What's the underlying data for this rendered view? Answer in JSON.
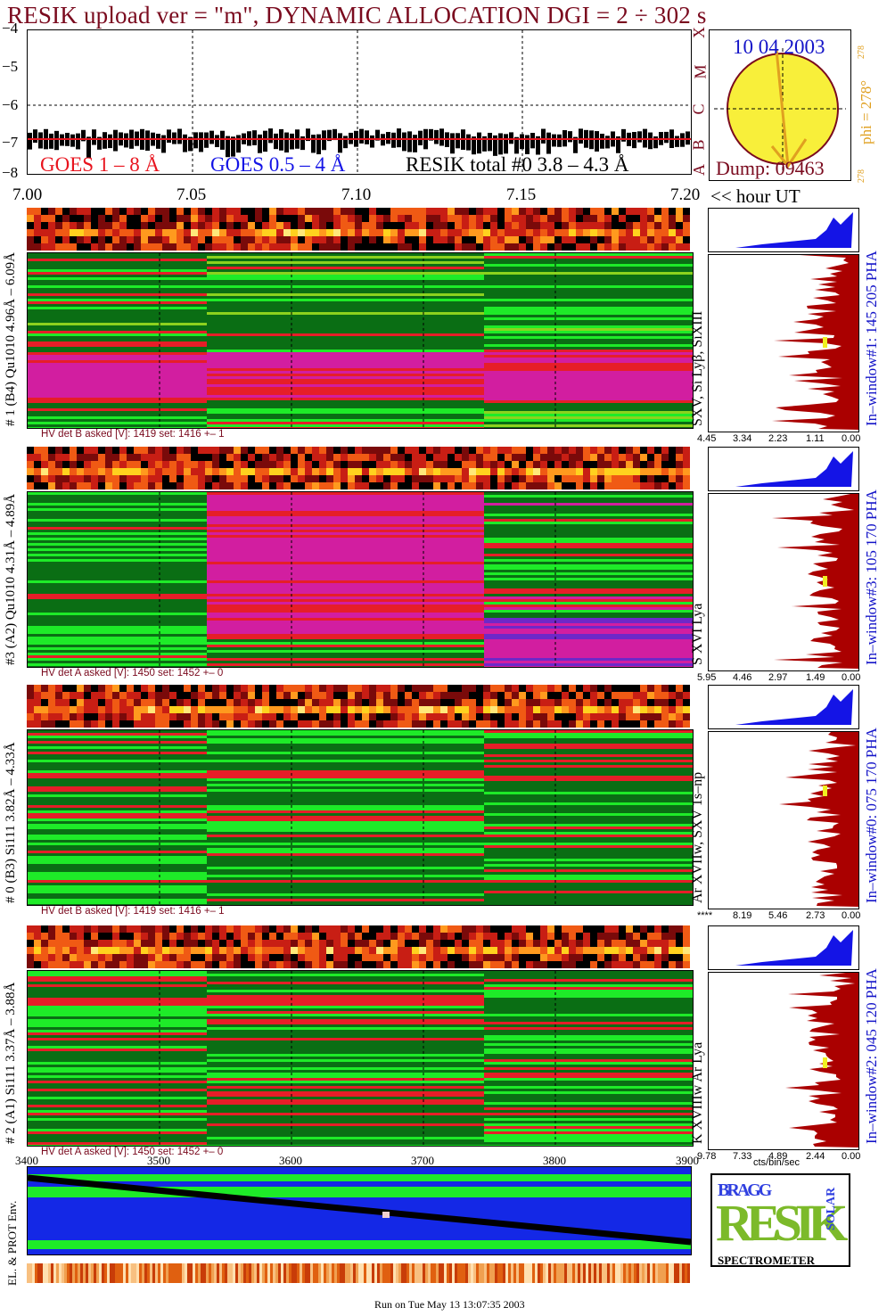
{
  "header": {
    "title": "RESIK upload ver = \"m\", DYNAMIC ALLOCATION  DGI =   2 ÷ 302 s"
  },
  "goes_panel": {
    "ytick_labels": [
      "−4",
      "−5",
      "−6",
      "−7",
      "−8"
    ],
    "legend_goes_long": "GOES 1 – 8 Å",
    "legend_goes_short": "GOES 0.5 – 4 Å",
    "legend_resik_total": "RESIK total #0  3.8 – 4.3 Å",
    "class_labels": [
      "X",
      "M",
      "C",
      "B",
      "A"
    ],
    "colors": {
      "long": "#e8141e",
      "short": "#1414e6",
      "resik": "#000000"
    }
  },
  "time_axis": {
    "tick_labels": [
      "7.00",
      "7.05",
      "7.10",
      "7.15",
      "7.20"
    ],
    "unit_label": "<< hour UT"
  },
  "sun_panel": {
    "date": "10 04 2003",
    "dump": "Dump: 09463",
    "phi_label": "phi = 278°",
    "phi_super": "278",
    "phi_small": "278",
    "sun_color": "#f8ef3a",
    "arrow_color": "#e0a020"
  },
  "detectors": [
    {
      "side_label": "# 1 (B4) Qu1010 4.96Å – 6.09Å",
      "lines_label": "SXV, Si Lyβ, SiXIII",
      "window_label": "In–window#1:  145 205 PHA",
      "hv_label": "HV det B asked [V]:  1419 set:  1416 +–    1",
      "hist_ticks": [
        "4.45",
        "3.34",
        "2.23",
        "1.11",
        "0.00"
      ]
    },
    {
      "side_label": "#3 (A2) Qu1010  4.31Å – 4.89Å",
      "lines_label": "S XVI Lya",
      "window_label": "In–window#3:  105 170 PHA",
      "hv_label": "HV det A asked [V]:  1450 set:  1452 +–    0",
      "hist_ticks": [
        "5.95",
        "4.46",
        "2.97",
        "1.49",
        "0.00"
      ]
    },
    {
      "side_label": "# 0 (B3) Si111  3.82Å – 4.33Å",
      "lines_label": "Ar XVIIw,  SXV 1s–np",
      "window_label": "In–window#0:  075 170 PHA",
      "hv_label": "HV det B asked [V]:  1419 set:  1416 +–    1",
      "hist_ticks": [
        "****",
        "8.19",
        "5.46",
        "2.73",
        "0.00"
      ]
    },
    {
      "side_label": "# 2 (A1) Si111  3.37Å –  3.88Å",
      "lines_label": "K XVIIIw  Ar Lya",
      "window_label": "In–window#2:  045 120 PHA",
      "hv_label": "HV det A asked [V]:  1450 set:  1452 +–    0",
      "hist_ticks": [
        "9.78",
        "7.33",
        "4.89",
        "2.44",
        "0.00"
      ]
    }
  ],
  "hist_unit": "cts/bin/sec",
  "bottom_axis": {
    "tick_labels": [
      "3400",
      "3500",
      "3600",
      "3700",
      "3800",
      "3900"
    ]
  },
  "env_panel": {
    "side_label": "EL. & PROT Env."
  },
  "logo": {
    "word_main": "RESIK",
    "word_bragg": "BRAGG",
    "word_solar": "SOLAR",
    "word_spectrometer": "SPECTROMETER"
  },
  "footer": {
    "run_text": "Run on Tue May 13 13:07:35 2003"
  }
}
